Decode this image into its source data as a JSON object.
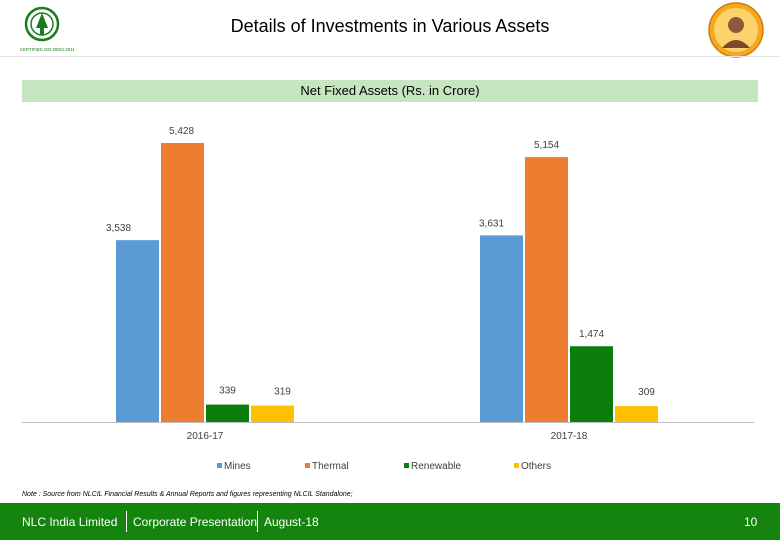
{
  "header": {
    "title": "Details of Investments in Various Assets"
  },
  "logo": {
    "text": "CERTIFIED ISO 50001:2011"
  },
  "chart_data": {
    "type": "bar",
    "title": "Net Fixed Assets (Rs. in Crore)",
    "categories": [
      "2016-17",
      "2017-18"
    ],
    "series": [
      {
        "name": "Mines",
        "values": [
          3538,
          3631
        ],
        "labels": [
          "3,538",
          "3,631"
        ],
        "color": "#5b9bd5"
      },
      {
        "name": "Thermal",
        "values": [
          5428,
          5154
        ],
        "labels": [
          "5,428",
          "5,154"
        ],
        "color": "#ed7d31"
      },
      {
        "name": "Renewable",
        "values": [
          339,
          1474
        ],
        "labels": [
          "339",
          "1,474"
        ],
        "color": "#0a7d0a"
      },
      {
        "name": "Others",
        "values": [
          319,
          309
        ],
        "labels": [
          "319",
          "309"
        ],
        "color": "#ffc000"
      }
    ],
    "ylim": [
      0,
      5428
    ],
    "grid": false,
    "legend_position": "bottom"
  },
  "note": "Note : Source from NLCIL Financial Results & Annual Reports and figures representing NLCIL Standalone;",
  "footer": {
    "company": "NLC India Limited",
    "presentation": "Corporate Presentation",
    "date": "August-18",
    "page": "10"
  }
}
